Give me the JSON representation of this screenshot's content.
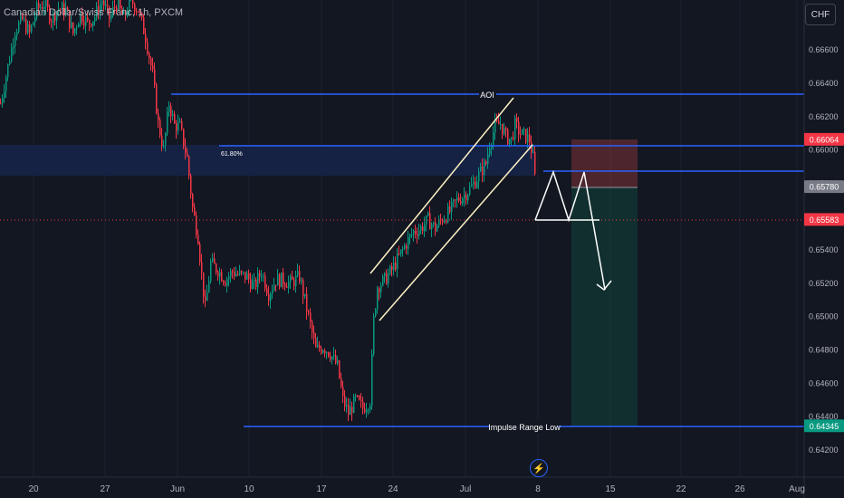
{
  "header": {
    "symbol_title": "Canadian Dollar/Swiss Franc, 1h, PXCM",
    "currency_button": "CHF"
  },
  "chart_data": {
    "type": "candlestick",
    "ylim": [
      0.6413,
      0.6695
    ],
    "y_ticks": [
      "0.66600",
      "0.66400",
      "0.66200",
      "0.66000",
      "0.65800",
      "0.65600",
      "0.65400",
      "0.65200",
      "0.65000",
      "0.64800",
      "0.64600",
      "0.64400",
      "0.64200"
    ],
    "x_ticks": [
      "20",
      "27",
      "Jun",
      "10",
      "17",
      "24",
      "Jul",
      "8",
      "15",
      "22",
      "26",
      "Aug"
    ],
    "price_labels": [
      {
        "text": "0.66064",
        "value": 0.66064,
        "color": "#f23645"
      },
      {
        "text": "0.65780",
        "value": 0.6578,
        "color": "#787b86"
      },
      {
        "text": "0.65583",
        "value": 0.65583,
        "color": "#f23645"
      },
      {
        "text": "0.64345",
        "value": 0.64345,
        "color": "#089981"
      }
    ],
    "annotations": {
      "aoi": "AOI",
      "fib": "61.80%",
      "impulse": "Impulse Range Low"
    },
    "colors": {
      "up": "#089981",
      "down": "#f23645",
      "level": "#2962ff",
      "channel": "#fff3c4",
      "projection": "#ffffff"
    },
    "price_path": [
      [
        0,
        0.6628
      ],
      [
        8,
        0.665
      ],
      [
        16,
        0.6672
      ],
      [
        24,
        0.6678
      ],
      [
        32,
        0.667
      ],
      [
        40,
        0.6684
      ],
      [
        48,
        0.6688
      ],
      [
        56,
        0.6679
      ],
      [
        64,
        0.6685
      ],
      [
        72,
        0.6684
      ],
      [
        80,
        0.667
      ],
      [
        88,
        0.6682
      ],
      [
        96,
        0.6676
      ],
      [
        104,
        0.668
      ],
      [
        112,
        0.669
      ],
      [
        120,
        0.6679
      ],
      [
        128,
        0.6688
      ],
      [
        136,
        0.6679
      ],
      [
        144,
        0.669
      ],
      [
        152,
        0.6684
      ],
      [
        160,
        0.6668
      ],
      [
        168,
        0.6645
      ],
      [
        174,
        0.6616
      ],
      [
        180,
        0.66
      ],
      [
        186,
        0.6628
      ],
      [
        192,
        0.6615
      ],
      [
        198,
        0.6614
      ],
      [
        206,
        0.6595
      ],
      [
        212,
        0.6565
      ],
      [
        218,
        0.6548
      ],
      [
        222,
        0.6525
      ],
      [
        226,
        0.6505
      ],
      [
        232,
        0.6532
      ],
      [
        240,
        0.6528
      ],
      [
        248,
        0.6522
      ],
      [
        256,
        0.6527
      ],
      [
        264,
        0.6525
      ],
      [
        272,
        0.6524
      ],
      [
        280,
        0.6518
      ],
      [
        288,
        0.6527
      ],
      [
        296,
        0.6514
      ],
      [
        304,
        0.6522
      ],
      [
        312,
        0.6522
      ],
      [
        320,
        0.652
      ],
      [
        330,
        0.6524
      ],
      [
        340,
        0.65
      ],
      [
        348,
        0.648
      ],
      [
        356,
        0.6482
      ],
      [
        364,
        0.6478
      ],
      [
        372,
        0.647
      ],
      [
        378,
        0.645
      ],
      [
        384,
        0.6442
      ],
      [
        392,
        0.645
      ],
      [
        400,
        0.6445
      ],
      [
        408,
        0.645
      ],
      [
        412,
        0.6498
      ],
      [
        416,
        0.6518
      ],
      [
        424,
        0.6522
      ],
      [
        432,
        0.6528
      ],
      [
        440,
        0.6536
      ],
      [
        448,
        0.6544
      ],
      [
        456,
        0.6551
      ],
      [
        464,
        0.6553
      ],
      [
        472,
        0.6558
      ],
      [
        480,
        0.6553
      ],
      [
        488,
        0.6559
      ],
      [
        496,
        0.6563
      ],
      [
        504,
        0.657
      ],
      [
        512,
        0.6573
      ],
      [
        520,
        0.6578
      ],
      [
        528,
        0.6585
      ],
      [
        536,
        0.6592
      ],
      [
        540,
        0.6604
      ],
      [
        546,
        0.6614
      ],
      [
        552,
        0.6616
      ],
      [
        558,
        0.6608
      ],
      [
        564,
        0.6606
      ],
      [
        568,
        0.6615
      ],
      [
        574,
        0.661
      ],
      [
        580,
        0.6608
      ],
      [
        584,
        0.6606
      ],
      [
        588,
        0.6595
      ],
      [
        592,
        0.6572
      ]
    ]
  }
}
